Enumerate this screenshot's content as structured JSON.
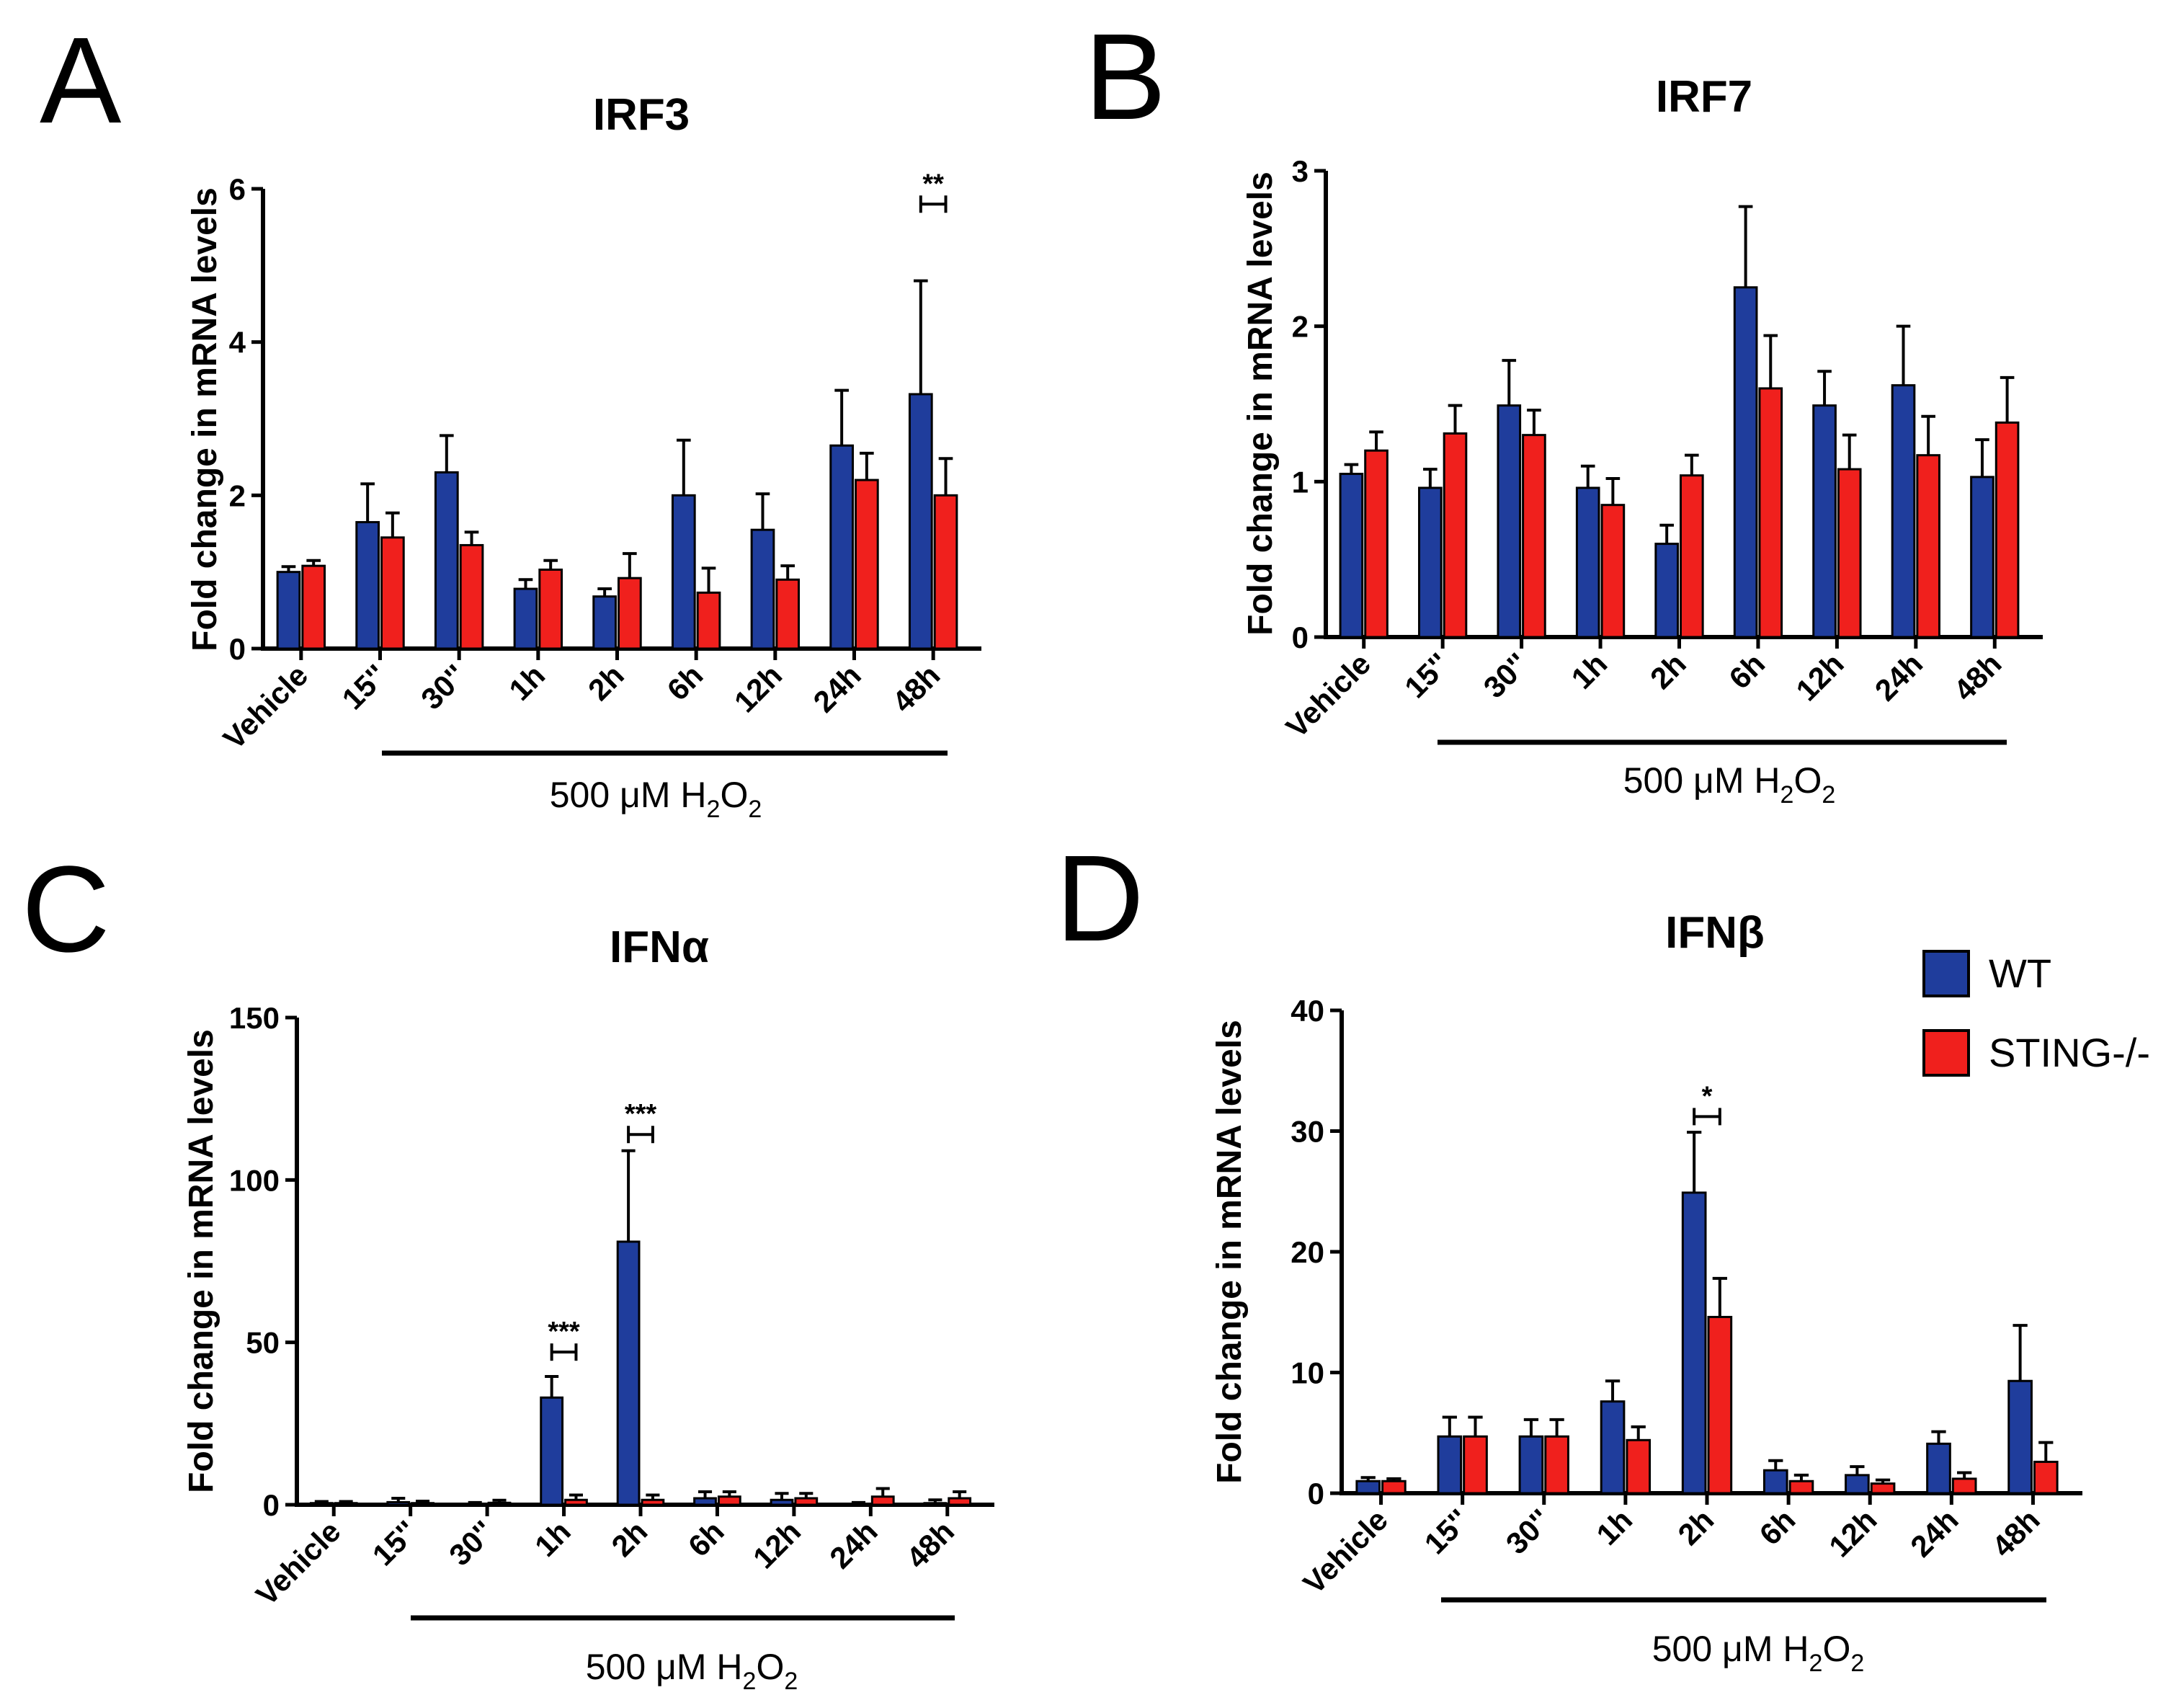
{
  "legend": {
    "items": [
      {
        "label": "WT",
        "color": "#1f3d9c"
      },
      {
        "label": "STING-/-",
        "color": "#f0201d"
      }
    ]
  },
  "chart_data": [
    {
      "panel": "A",
      "type": "bar",
      "title": "IRF3",
      "ylabel": "Fold change in mRNA levels",
      "ylim": [
        0,
        6
      ],
      "yticks": [
        0,
        2,
        4,
        6
      ],
      "categories": [
        "Vehicle",
        "15''",
        "30''",
        "1h",
        "2h",
        "6h",
        "12h",
        "24h",
        "48h"
      ],
      "treatment_label": {
        "prefix": "500 μM H",
        "sub1": "2",
        "mid": "O",
        "sub2": "2"
      },
      "series": [
        {
          "name": "WT",
          "values": [
            1.0,
            1.65,
            2.3,
            0.78,
            0.68,
            2.0,
            1.55,
            2.65,
            3.32
          ],
          "errors": [
            0.07,
            0.5,
            0.48,
            0.12,
            0.1,
            0.72,
            0.47,
            0.72,
            1.48
          ]
        },
        {
          "name": "STING-/-",
          "values": [
            1.08,
            1.45,
            1.35,
            1.03,
            0.92,
            0.73,
            0.9,
            2.2,
            2.0
          ],
          "errors": [
            0.07,
            0.32,
            0.17,
            0.12,
            0.32,
            0.32,
            0.18,
            0.35,
            0.48
          ]
        }
      ],
      "significance": [
        {
          "category": "48h",
          "y": 5.8,
          "label": "**"
        }
      ]
    },
    {
      "panel": "B",
      "type": "bar",
      "title": "IRF7",
      "ylabel": "Fold change in mRNA levels",
      "ylim": [
        0,
        3
      ],
      "yticks": [
        0,
        1,
        2,
        3
      ],
      "categories": [
        "Vehicle",
        "15''",
        "30''",
        "1h",
        "2h",
        "6h",
        "12h",
        "24h",
        "48h"
      ],
      "treatment_label": {
        "prefix": "500 μM H",
        "sub1": "2",
        "mid": "O",
        "sub2": "2"
      },
      "series": [
        {
          "name": "WT",
          "values": [
            1.05,
            0.96,
            1.49,
            0.96,
            0.6,
            2.25,
            1.49,
            1.62,
            1.03
          ],
          "errors": [
            0.06,
            0.12,
            0.29,
            0.14,
            0.12,
            0.52,
            0.22,
            0.38,
            0.24
          ]
        },
        {
          "name": "STING-/-",
          "values": [
            1.2,
            1.31,
            1.3,
            0.85,
            1.04,
            1.6,
            1.08,
            1.17,
            1.38
          ],
          "errors": [
            0.12,
            0.18,
            0.16,
            0.17,
            0.13,
            0.34,
            0.22,
            0.25,
            0.29
          ]
        }
      ],
      "significance": []
    },
    {
      "panel": "C",
      "type": "bar",
      "title": "IFNα",
      "ylabel": "Fold change in mRNA levels",
      "ylim": [
        0,
        150
      ],
      "yticks": [
        0,
        50,
        100,
        150
      ],
      "categories": [
        "Vehicle",
        "15''",
        "30''",
        "1h",
        "2h",
        "6h",
        "12h",
        "24h",
        "48h"
      ],
      "treatment_label": {
        "prefix": "500 μM H",
        "sub1": "2",
        "mid": "O",
        "sub2": "2"
      },
      "series": [
        {
          "name": "WT",
          "values": [
            0.5,
            0.8,
            0.3,
            33.0,
            81.0,
            2.0,
            1.5,
            0.3,
            0.5
          ],
          "errors": [
            0.5,
            1.2,
            0.4,
            6.5,
            28.0,
            2.0,
            2.0,
            0.4,
            1.0
          ]
        },
        {
          "name": "STING-/-",
          "values": [
            0.5,
            0.5,
            0.6,
            1.5,
            1.5,
            2.5,
            2.0,
            2.5,
            2.0
          ],
          "errors": [
            0.5,
            0.6,
            0.8,
            1.5,
            1.5,
            1.5,
            1.5,
            2.5,
            2.0
          ]
        }
      ],
      "significance": [
        {
          "category": "1h",
          "y": 47,
          "label": "***"
        },
        {
          "category": "2h",
          "y": 114,
          "label": "***"
        }
      ]
    },
    {
      "panel": "D",
      "type": "bar",
      "title": "IFNβ",
      "ylabel": "Fold change in mRNA levels",
      "ylim": [
        0,
        40
      ],
      "yticks": [
        0,
        10,
        20,
        30,
        40
      ],
      "categories": [
        "Vehicle",
        "15''",
        "30''",
        "1h",
        "2h",
        "6h",
        "12h",
        "24h",
        "48h"
      ],
      "treatment_label": {
        "prefix": "500 μM H",
        "sub1": "2",
        "mid": "O",
        "sub2": "2"
      },
      "series": [
        {
          "name": "WT",
          "values": [
            1.0,
            4.7,
            4.7,
            7.6,
            24.9,
            1.9,
            1.5,
            4.1,
            9.3
          ],
          "errors": [
            0.3,
            1.6,
            1.4,
            1.7,
            5.0,
            0.8,
            0.7,
            1.0,
            4.6
          ]
        },
        {
          "name": "STING-/-",
          "values": [
            1.0,
            4.7,
            4.7,
            4.4,
            14.6,
            1.0,
            0.8,
            1.2,
            2.6
          ],
          "errors": [
            0.2,
            1.6,
            1.4,
            1.1,
            3.2,
            0.5,
            0.3,
            0.5,
            1.6
          ]
        }
      ],
      "significance": [
        {
          "category": "2h",
          "y": 31.2,
          "label": "*"
        }
      ]
    }
  ]
}
